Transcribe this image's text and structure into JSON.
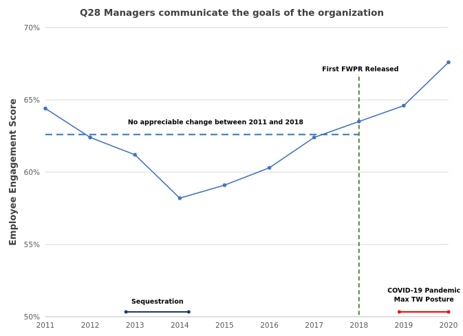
{
  "chart_data": {
    "type": "line",
    "title": "Q28 Managers communicate the goals of the organization",
    "ylabel": "Employee Engagement Score",
    "xlabel": "",
    "x": [
      "2011",
      "2012",
      "2013",
      "2014",
      "2015",
      "2016",
      "2017",
      "2018",
      "2019",
      "2020"
    ],
    "series": [
      {
        "values": [
          64.4,
          62.4,
          61.2,
          58.2,
          59.1,
          60.3,
          62.4,
          63.5,
          64.6,
          67.6
        ],
        "color": "#4472C4"
      }
    ],
    "ylim": [
      50,
      70
    ],
    "yticks": [
      "50%",
      "55%",
      "60%",
      "65%",
      "70%"
    ],
    "grid": true,
    "reference_line": {
      "value": 62.6,
      "x_start": "2011",
      "x_end": "2018",
      "style": "dashed",
      "color": "#2E75B6",
      "label": "No appreciable change between 2011 and 2018"
    },
    "vertical_marker": {
      "x": "2018",
      "label": "First FWPR Released",
      "style": "dashed",
      "color": "#548235"
    },
    "periods": [
      {
        "label": "Sequestration",
        "start": 2012.8,
        "end": 2014.2,
        "color": "#1F3864"
      },
      {
        "label_line1": "COVID-19 Pandemic",
        "label_line2": "Max TW Posture",
        "start": 2018.9,
        "end": 2020.0,
        "color": "#FF0000"
      }
    ]
  }
}
